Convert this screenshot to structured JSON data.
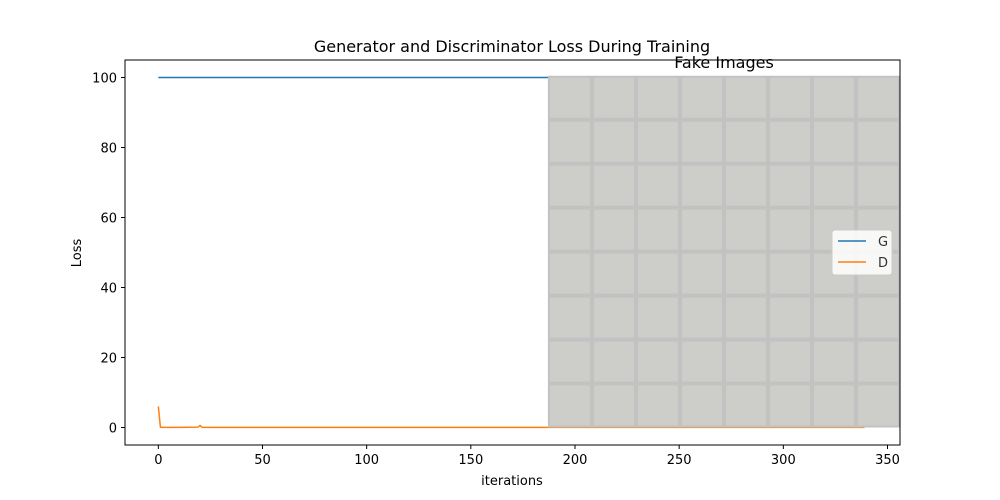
{
  "chart_data": {
    "type": "line",
    "title": "Generator and Discriminator Loss During Training",
    "xlabel": "iterations",
    "ylabel": "Loss",
    "xlim": [
      -16,
      356
    ],
    "ylim": [
      -5,
      105
    ],
    "xticks": [
      0,
      50,
      100,
      150,
      200,
      250,
      300,
      350
    ],
    "yticks": [
      0,
      20,
      40,
      60,
      80,
      100
    ],
    "grid": false,
    "legend_position": "center-right",
    "series": [
      {
        "name": "G",
        "color": "#1f77b4",
        "x": [
          0,
          20,
          50,
          100,
          150,
          200,
          250,
          300,
          339
        ],
        "y": [
          100,
          100,
          100,
          100,
          100,
          100,
          100,
          100,
          100
        ]
      },
      {
        "name": "D",
        "color": "#ff7f0e",
        "x": [
          0,
          1,
          2,
          5,
          10,
          19,
          20,
          21,
          25,
          50,
          100,
          150,
          200,
          250,
          300,
          339
        ],
        "y": [
          6,
          0.1,
          0.05,
          0.05,
          0.05,
          0.1,
          0.6,
          0.05,
          0.02,
          0.02,
          0.02,
          0.02,
          0.02,
          0.02,
          0.02,
          0.02
        ]
      }
    ],
    "inset": {
      "title": "Fake Images",
      "x_range": [
        187,
        356
      ],
      "y_range": [
        0,
        100.5
      ],
      "grid_cols": 8,
      "grid_rows": 8,
      "cell_color": "#cdcdca",
      "line_color": "#c2c2c2"
    }
  }
}
